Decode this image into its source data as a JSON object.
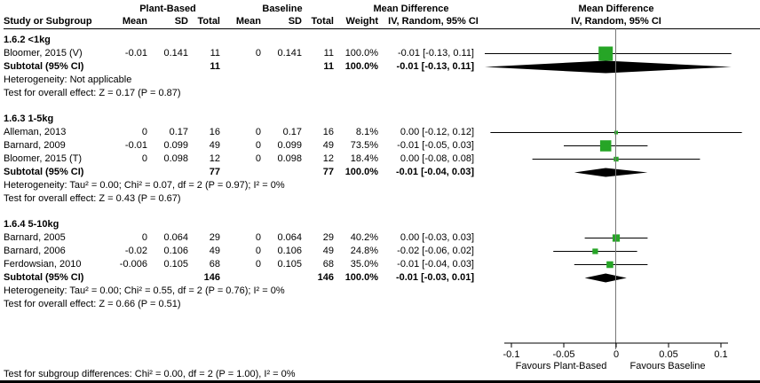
{
  "chart_data": {
    "type": "forest",
    "effect_measure": "Mean Difference",
    "method": "IV, Random, 95% CI",
    "columns": {
      "study": "Study or Subgroup",
      "group1": "Plant-Based",
      "group2": "Baseline",
      "mean": "Mean",
      "sd": "SD",
      "total": "Total",
      "weight": "Weight",
      "md_header": "Mean Difference",
      "ci_header": "IV, Random, 95% CI"
    },
    "axis": {
      "min": -0.1,
      "max": 0.1,
      "ticks": [
        -0.1,
        -0.05,
        0,
        0.05,
        0.1
      ],
      "tick_labels": [
        "-0.1",
        "-0.05",
        "0",
        "0.05",
        "0.1"
      ],
      "left_label": "Favours Plant-Based",
      "right_label": "Favours Baseline"
    },
    "colors": {
      "square": "#26A526",
      "diamond": "#000000",
      "line": "#000000",
      "zero_line": "#777777"
    },
    "sections": [
      {
        "title": "1.6.2 <1kg",
        "studies": [
          {
            "name": "Bloomer, 2015 (V)",
            "mean1": "-0.01",
            "sd1": "0.141",
            "total1": "11",
            "mean2": "0",
            "sd2": "0.141",
            "total2": "11",
            "weight": "100.0%",
            "ci": "-0.01 [-0.13, 0.11]",
            "est": -0.01,
            "lo": -0.13,
            "hi": 0.11,
            "w": 100.0
          }
        ],
        "subtotal": {
          "label": "Subtotal (95% CI)",
          "total1": "11",
          "total2": "11",
          "weight": "100.0%",
          "ci": "-0.01 [-0.13, 0.11]",
          "est": -0.01,
          "lo": -0.13,
          "hi": 0.11,
          "big": true
        },
        "heterogeneity": "Heterogeneity: Not applicable",
        "overall_test": "Test for overall effect: Z = 0.17 (P = 0.87)"
      },
      {
        "title": "1.6.3 1-5kg",
        "studies": [
          {
            "name": "Alleman, 2013",
            "mean1": "0",
            "sd1": "0.17",
            "total1": "16",
            "mean2": "0",
            "sd2": "0.17",
            "total2": "16",
            "weight": "8.1%",
            "ci": "0.00 [-0.12, 0.12]",
            "est": 0,
            "lo": -0.12,
            "hi": 0.12,
            "w": 8.1
          },
          {
            "name": "Barnard, 2009",
            "mean1": "-0.01",
            "sd1": "0.099",
            "total1": "49",
            "mean2": "0",
            "sd2": "0.099",
            "total2": "49",
            "weight": "73.5%",
            "ci": "-0.01 [-0.05, 0.03]",
            "est": -0.01,
            "lo": -0.05,
            "hi": 0.03,
            "w": 73.5
          },
          {
            "name": "Bloomer, 2015 (T)",
            "mean1": "0",
            "sd1": "0.098",
            "total1": "12",
            "mean2": "0",
            "sd2": "0.098",
            "total2": "12",
            "weight": "18.4%",
            "ci": "0.00 [-0.08, 0.08]",
            "est": 0,
            "lo": -0.08,
            "hi": 0.08,
            "w": 18.4
          }
        ],
        "subtotal": {
          "label": "Subtotal (95% CI)",
          "total1": "77",
          "total2": "77",
          "weight": "100.0%",
          "ci": "-0.01 [-0.04, 0.03]",
          "est": -0.01,
          "lo": -0.04,
          "hi": 0.03,
          "big": false
        },
        "heterogeneity": "Heterogeneity: Tau² = 0.00; Chi² = 0.07, df = 2 (P = 0.97); I² = 0%",
        "overall_test": "Test for overall effect: Z = 0.43 (P = 0.67)"
      },
      {
        "title": "1.6.4 5-10kg",
        "studies": [
          {
            "name": "Barnard, 2005",
            "mean1": "0",
            "sd1": "0.064",
            "total1": "29",
            "mean2": "0",
            "sd2": "0.064",
            "total2": "29",
            "weight": "40.2%",
            "ci": "0.00 [-0.03, 0.03]",
            "est": 0,
            "lo": -0.03,
            "hi": 0.03,
            "w": 40.2
          },
          {
            "name": "Barnard, 2006",
            "mean1": "-0.02",
            "sd1": "0.106",
            "total1": "49",
            "mean2": "0",
            "sd2": "0.106",
            "total2": "49",
            "weight": "24.8%",
            "ci": "-0.02 [-0.06, 0.02]",
            "est": -0.02,
            "lo": -0.06,
            "hi": 0.02,
            "w": 24.8
          },
          {
            "name": "Ferdowsian, 2010",
            "mean1": "-0.006",
            "sd1": "0.105",
            "total1": "68",
            "mean2": "0",
            "sd2": "0.105",
            "total2": "68",
            "weight": "35.0%",
            "ci": "-0.01 [-0.04, 0.03]",
            "est": -0.006,
            "lo": -0.04,
            "hi": 0.03,
            "w": 35.0
          }
        ],
        "subtotal": {
          "label": "Subtotal (95% CI)",
          "total1": "146",
          "total2": "146",
          "weight": "100.0%",
          "ci": "-0.01 [-0.03, 0.01]",
          "est": -0.01,
          "lo": -0.03,
          "hi": 0.01,
          "big": false
        },
        "heterogeneity": "Heterogeneity: Tau² = 0.00; Chi² = 0.55, df = 2 (P = 0.76); I² = 0%",
        "overall_test": "Test for overall effect: Z = 0.66 (P = 0.51)"
      }
    ],
    "footer": "Test for subgroup differences: Chi² = 0.00, df = 2 (P = 1.00), I² = 0%"
  }
}
